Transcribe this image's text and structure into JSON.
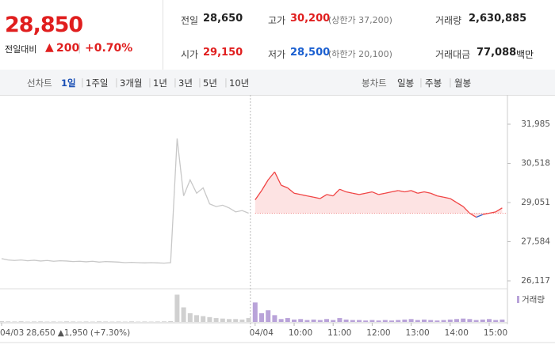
{
  "quote": {
    "price": "28,850",
    "change_label": "전일대비",
    "change": "200",
    "change_pct": "+0.70%"
  },
  "stats": [
    {
      "label": "전일",
      "value": "28,650"
    },
    {
      "label": "고가",
      "value": "30,200",
      "note": "(상한가 37,200)"
    },
    {
      "label": "거래량",
      "value": "2,630,885"
    },
    {
      "label": "시가",
      "value": "29,150"
    },
    {
      "label": "저가",
      "value": "28,500",
      "note": "(하한가 20,100)"
    },
    {
      "label": "거래대금",
      "value": "77,088",
      "note": "백만"
    }
  ],
  "line_tabs": {
    "label": "선차트",
    "items": [
      "1일",
      "1주일",
      "3개월",
      "1년",
      "3년",
      "5년",
      "10년"
    ]
  },
  "candle_tabs": {
    "label": "봉차트",
    "items": [
      "일봉",
      "주봉",
      "월봉"
    ]
  },
  "chart_data": {
    "type": "line",
    "categories": [
      "04/03",
      null,
      null,
      null,
      null,
      null,
      null,
      null,
      null,
      null,
      null,
      null,
      null,
      null,
      null,
      null,
      null,
      null,
      null,
      null,
      null,
      null,
      null,
      null,
      null,
      null,
      null,
      null,
      null,
      null,
      null,
      null,
      null,
      null,
      null,
      null,
      null,
      null,
      null,
      "04/04",
      null,
      null,
      null,
      null,
      null,
      "10:00",
      null,
      null,
      null,
      null,
      null,
      "11:00",
      null,
      null,
      null,
      null,
      null,
      "12:00",
      null,
      null,
      null,
      null,
      null,
      "13:00",
      null,
      null,
      null,
      null,
      null,
      "14:00",
      null,
      null,
      null,
      null,
      null,
      "15:00",
      null,
      null
    ],
    "series": [
      {
        "name": "04/03",
        "color": "#c8c8c8",
        "values": [
          26950,
          26900,
          26880,
          26900,
          26870,
          26890,
          26860,
          26880,
          26850,
          26870,
          26860,
          26840,
          26850,
          26830,
          26850,
          26820,
          26840,
          26830,
          26820,
          26800,
          26810,
          26800,
          26790,
          26800,
          26790,
          26780,
          26800,
          31450,
          29300,
          29900,
          29400,
          29600,
          29000,
          28900,
          28950,
          28850,
          28700,
          28750,
          28650,
          null,
          null,
          null,
          null,
          null,
          null,
          null,
          null,
          null,
          null,
          null,
          null,
          null,
          null,
          null,
          null,
          null,
          null,
          null,
          null,
          null,
          null,
          null,
          null,
          null,
          null,
          null,
          null,
          null,
          null,
          null,
          null,
          null,
          null,
          null,
          null,
          null,
          null,
          null
        ]
      },
      {
        "name": "04/04",
        "color": "#f04444",
        "below_color": "#3366cc",
        "values": [
          null,
          null,
          null,
          null,
          null,
          null,
          null,
          null,
          null,
          null,
          null,
          null,
          null,
          null,
          null,
          null,
          null,
          null,
          null,
          null,
          null,
          null,
          null,
          null,
          null,
          null,
          null,
          null,
          null,
          null,
          null,
          null,
          null,
          null,
          null,
          null,
          null,
          null,
          null,
          29150,
          29500,
          29900,
          30200,
          29700,
          29600,
          29400,
          29350,
          29300,
          29250,
          29200,
          29350,
          29300,
          29550,
          29450,
          29400,
          29350,
          29400,
          29450,
          29350,
          29400,
          29450,
          29500,
          29450,
          29500,
          29400,
          29450,
          29400,
          29300,
          29250,
          29200,
          29050,
          28900,
          28650,
          28500,
          28600,
          28650,
          28700,
          28850
        ]
      }
    ],
    "baseline": 28650,
    "ylim": [
      25910,
      32785
    ],
    "yticks": [
      {
        "value": 26117,
        "label": "26,117"
      },
      {
        "value": 27584,
        "label": "27,584"
      },
      {
        "value": 29051,
        "label": "29,051"
      },
      {
        "value": 30518,
        "label": "30,518"
      },
      {
        "value": 31985,
        "label": "31,985"
      }
    ],
    "grid": false,
    "volume": {
      "name": "거래량",
      "color": "#b9a3d9",
      "ylim": [
        0,
        300000
      ],
      "values": [
        8000,
        6000,
        5000,
        7000,
        4000,
        5000,
        6000,
        4000,
        5000,
        4000,
        6000,
        5000,
        4000,
        5000,
        4000,
        6000,
        5000,
        4000,
        5000,
        4000,
        6000,
        4000,
        5000,
        4000,
        5000,
        6000,
        9000,
        280000,
        150000,
        90000,
        70000,
        60000,
        50000,
        40000,
        35000,
        30000,
        30000,
        25000,
        40000,
        200000,
        90000,
        120000,
        70000,
        30000,
        40000,
        25000,
        30000,
        20000,
        25000,
        20000,
        30000,
        20000,
        40000,
        25000,
        20000,
        20000,
        15000,
        20000,
        15000,
        20000,
        15000,
        20000,
        25000,
        30000,
        20000,
        25000,
        20000,
        15000,
        20000,
        25000,
        30000,
        35000,
        30000,
        20000,
        25000,
        30000,
        20000,
        25000
      ]
    },
    "annotation": {
      "close": "28,650",
      "change": "1,950",
      "pct": "(+7.30%)"
    }
  }
}
